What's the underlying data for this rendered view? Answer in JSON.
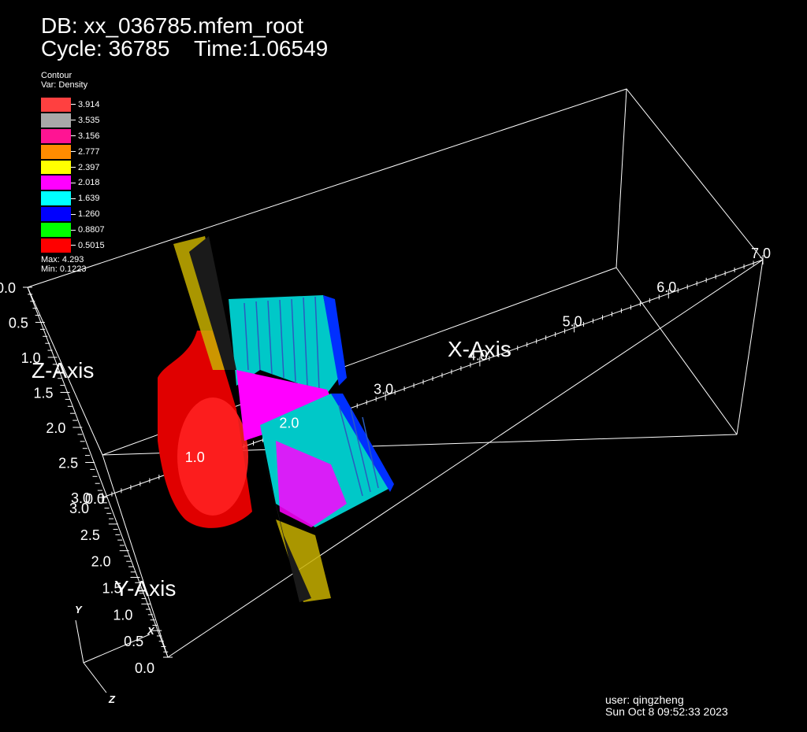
{
  "header": {
    "db_line": "DB: xx_036785.mfem_root",
    "cycle_line": "Cycle: 36785    Time:1.06549"
  },
  "legend": {
    "plot_type": "Contour",
    "variable": "Var: Density",
    "entries": [
      {
        "value": "3.914",
        "color": "#ff4040"
      },
      {
        "value": "3.535",
        "color": "#a8a8a8"
      },
      {
        "value": "3.156",
        "color": "#ff1493"
      },
      {
        "value": "2.777",
        "color": "#ff8c00"
      },
      {
        "value": "2.397",
        "color": "#ffff00"
      },
      {
        "value": "2.018",
        "color": "#ff00ff"
      },
      {
        "value": "1.639",
        "color": "#00ffff"
      },
      {
        "value": "1.260",
        "color": "#0000ff"
      },
      {
        "value": "0.8807",
        "color": "#00ff00"
      },
      {
        "value": "0.5015",
        "color": "#ff0000"
      }
    ],
    "max": "Max:  4.293",
    "min": "Min:  0.1223"
  },
  "axes": {
    "x_title": "X-Axis",
    "y_title": "Y-Axis",
    "z_title": "Z-Axis",
    "x_ticks": [
      "1.0",
      "2.0",
      "3.0",
      "4.0",
      "5.0",
      "6.0",
      "7.0"
    ],
    "z_ticks": [
      "0.0",
      "0.5",
      "1.0",
      "1.5",
      "2.0",
      "2.5",
      "3.0"
    ],
    "y_ticks": [
      "3.0",
      "2.5",
      "2.0",
      "1.5",
      "1.0",
      "0.5",
      "0.0"
    ],
    "origin_label": "0.0",
    "triad": {
      "x": "X",
      "y": "Y",
      "z": "Z"
    }
  },
  "footer": {
    "user": "user: qingzheng",
    "date": "Sun Oct  8 09:52:33 2023"
  }
}
